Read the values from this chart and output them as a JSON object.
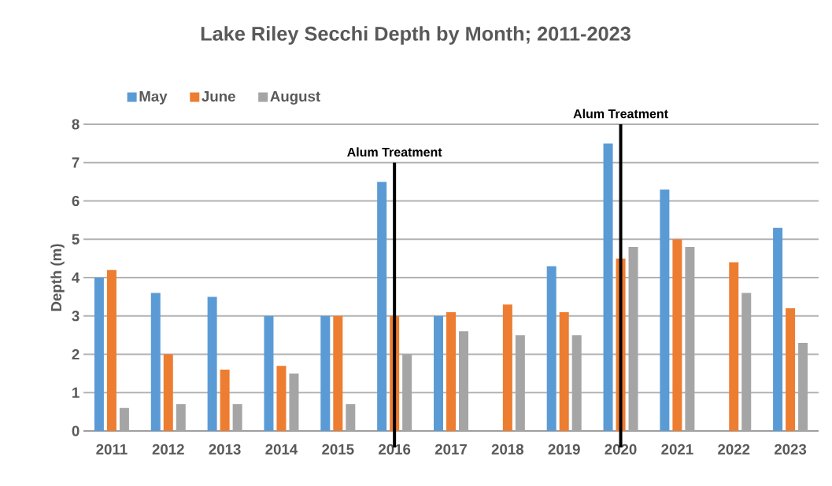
{
  "chart_data": {
    "type": "bar",
    "title": "Lake Riley Secchi Depth by Month; 2011-2023",
    "ylabel": "Depth (m)",
    "categories": [
      "2011",
      "2012",
      "2013",
      "2014",
      "2015",
      "2016",
      "2017",
      "2018",
      "2019",
      "2020",
      "2021",
      "2022",
      "2023"
    ],
    "series": [
      {
        "name": "May",
        "color": "#5b9bd5",
        "values": [
          4.0,
          3.6,
          3.5,
          3.0,
          3.0,
          6.5,
          3.0,
          null,
          4.3,
          7.5,
          6.3,
          null,
          5.3
        ]
      },
      {
        "name": "June",
        "color": "#ed7d31",
        "values": [
          4.2,
          2.0,
          1.6,
          1.7,
          3.0,
          3.0,
          3.1,
          3.3,
          3.1,
          4.5,
          5.0,
          4.4,
          3.2
        ]
      },
      {
        "name": "August",
        "color": "#a5a5a5",
        "values": [
          0.6,
          0.7,
          0.7,
          1.5,
          0.7,
          2.0,
          2.6,
          2.5,
          2.5,
          4.8,
          4.8,
          3.6,
          2.3
        ]
      }
    ],
    "ylim": [
      0,
      8
    ],
    "yticks": [
      0,
      1,
      2,
      3,
      4,
      5,
      6,
      7,
      8
    ],
    "grid": "y",
    "legend": "top left",
    "ref_lines": [
      {
        "axis": "x",
        "value": "2016",
        "label": "Alum Treatment",
        "color": "#000000"
      },
      {
        "axis": "x",
        "value": "2020",
        "label": "Alum Treatment",
        "color": "#000000"
      }
    ]
  }
}
